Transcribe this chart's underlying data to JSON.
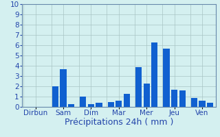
{
  "xlabel": "Précipitations 24h ( mm )",
  "ylim": [
    0,
    10
  ],
  "yticks": [
    0,
    1,
    2,
    3,
    4,
    5,
    6,
    7,
    8,
    9,
    10
  ],
  "background_color": "#d4f0f0",
  "bar_color": "#1060d0",
  "grid_color": "#a8c4c4",
  "spine_color": "#6688aa",
  "tick_color": "#2244aa",
  "xlabel_fontsize": 9,
  "tick_fontsize": 7.5,
  "values": [
    0.0,
    0.0,
    0.0,
    2.0,
    3.7,
    0.3,
    1.0,
    0.3,
    0.4,
    0.5,
    0.6,
    1.3,
    3.9,
    2.3,
    6.3,
    5.7,
    1.7,
    1.6,
    0.9,
    0.6,
    0.4
  ],
  "day_labels": [
    "Dirbun",
    "Sam",
    "Dim",
    "Mar",
    "Mer",
    "Jeu",
    "Ven"
  ],
  "bars_per_day": 3,
  "num_days": 7,
  "bar_width": 0.8
}
